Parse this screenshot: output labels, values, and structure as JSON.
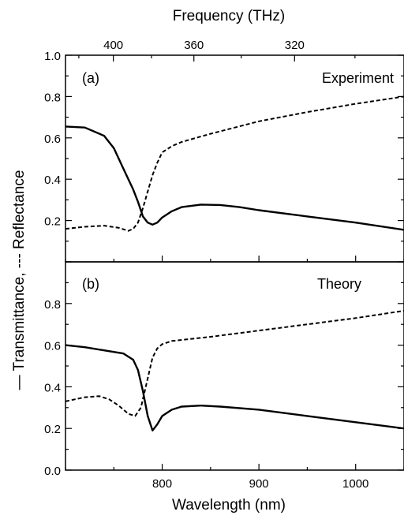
{
  "figure": {
    "top_axis_label": "Frequency (THz)",
    "bottom_axis_label": "Wavelength (nm)",
    "y_axis_label": "— Transmittance, --- Reflectance"
  },
  "chart_data": [
    {
      "type": "line",
      "panel_label": "(a)",
      "annotation": "Experiment",
      "xlim": [
        700,
        1050
      ],
      "ylim": [
        0.0,
        1.0
      ],
      "x_ticks": [
        800,
        900,
        1000
      ],
      "y_tick_labels": [
        "0.2",
        "0.4",
        "0.6",
        "0.8",
        "1.0"
      ],
      "top_axis": {
        "ticks_thz": [
          400,
          360,
          320
        ],
        "tick_labels": [
          "400",
          "360",
          "320"
        ]
      },
      "series": [
        {
          "role": "transmittance",
          "style": "solid",
          "x": [
            700,
            720,
            740,
            750,
            760,
            770,
            775,
            780,
            785,
            790,
            795,
            800,
            810,
            820,
            840,
            860,
            880,
            900,
            950,
            1000,
            1050
          ],
          "y": [
            0.655,
            0.65,
            0.61,
            0.55,
            0.45,
            0.35,
            0.29,
            0.22,
            0.19,
            0.18,
            0.19,
            0.215,
            0.245,
            0.265,
            0.277,
            0.275,
            0.265,
            0.25,
            0.22,
            0.19,
            0.155
          ]
        },
        {
          "role": "reflectance",
          "style": "dashed",
          "x": [
            700,
            720,
            740,
            755,
            765,
            770,
            775,
            780,
            785,
            790,
            795,
            800,
            810,
            820,
            850,
            900,
            950,
            1000,
            1050
          ],
          "y": [
            0.16,
            0.17,
            0.175,
            0.165,
            0.15,
            0.16,
            0.19,
            0.26,
            0.34,
            0.42,
            0.48,
            0.53,
            0.56,
            0.58,
            0.62,
            0.68,
            0.725,
            0.765,
            0.8
          ]
        }
      ]
    },
    {
      "type": "line",
      "panel_label": "(b)",
      "annotation": "Theory",
      "xlim": [
        700,
        1050
      ],
      "ylim": [
        0.0,
        1.0
      ],
      "x_ticks": [
        800,
        900,
        1000
      ],
      "x_tick_labels": [
        "800",
        "900",
        "1000"
      ],
      "y_tick_labels": [
        "0.0",
        "0.2",
        "0.4",
        "0.6",
        "0.8"
      ],
      "series": [
        {
          "role": "transmittance",
          "style": "solid",
          "x": [
            700,
            720,
            740,
            760,
            770,
            775,
            780,
            785,
            790,
            795,
            800,
            810,
            820,
            840,
            860,
            900,
            950,
            1000,
            1050
          ],
          "y": [
            0.6,
            0.59,
            0.575,
            0.56,
            0.53,
            0.48,
            0.38,
            0.26,
            0.19,
            0.22,
            0.26,
            0.29,
            0.305,
            0.31,
            0.305,
            0.29,
            0.26,
            0.23,
            0.2
          ]
        },
        {
          "role": "reflectance",
          "style": "dashed",
          "x": [
            700,
            710,
            720,
            735,
            745,
            755,
            765,
            772,
            778,
            782,
            786,
            790,
            795,
            800,
            810,
            820,
            850,
            900,
            950,
            1000,
            1050
          ],
          "y": [
            0.33,
            0.34,
            0.35,
            0.355,
            0.34,
            0.31,
            0.27,
            0.26,
            0.3,
            0.38,
            0.46,
            0.54,
            0.585,
            0.605,
            0.62,
            0.625,
            0.64,
            0.67,
            0.7,
            0.73,
            0.765
          ]
        }
      ]
    }
  ]
}
